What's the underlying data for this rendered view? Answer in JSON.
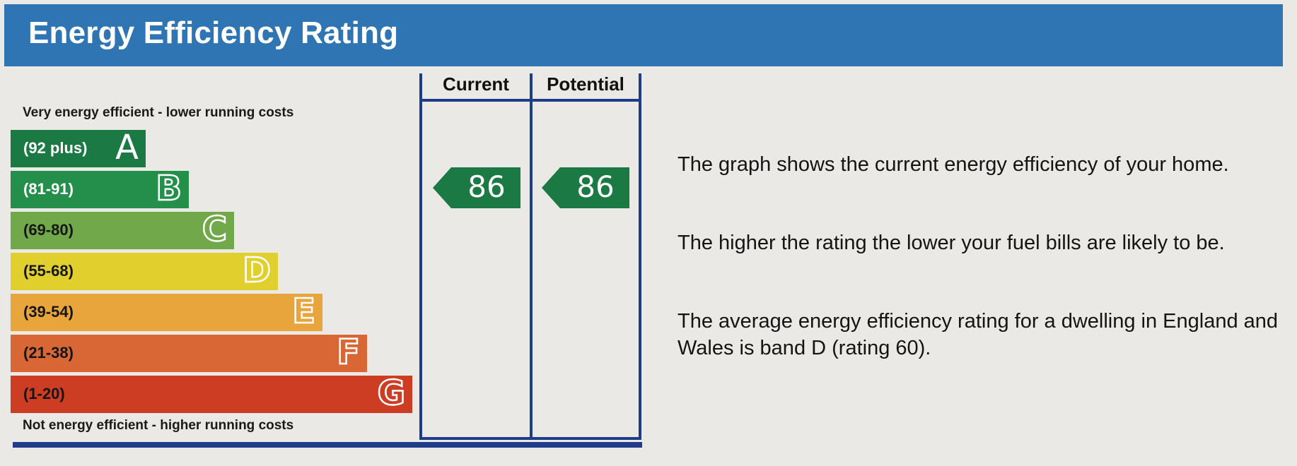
{
  "title": "Energy Efficiency Rating",
  "top_label": "Very energy efficient - lower running costs",
  "bottom_label": "Not energy efficient - higher running costs",
  "columns": {
    "current": "Current",
    "potential": "Potential"
  },
  "ratings": {
    "current": "86",
    "potential": "86"
  },
  "bands": [
    {
      "letter": "A",
      "range": "(92 plus)",
      "color": "#1b7a43"
    },
    {
      "letter": "B",
      "range": "(81-91)",
      "color": "#248f4b"
    },
    {
      "letter": "C",
      "range": "(69-80)",
      "color": "#71a84a"
    },
    {
      "letter": "D",
      "range": "(55-68)",
      "color": "#e1cf2e"
    },
    {
      "letter": "E",
      "range": "(39-54)",
      "color": "#e7a53b"
    },
    {
      "letter": "F",
      "range": "(21-38)",
      "color": "#d86735"
    },
    {
      "letter": "G",
      "range": "(1-20)",
      "color": "#cd3d23"
    }
  ],
  "info": [
    "The graph shows the current energy efficiency of your home.",
    "The higher the rating the lower your fuel bills are likely to be.",
    "The average energy efficiency rating for a dwelling in England and Wales is band D (rating 60)."
  ],
  "colors": {
    "header": "#2f74b3",
    "frame": "#1f3c88",
    "arrow": "#1b7a43"
  }
}
